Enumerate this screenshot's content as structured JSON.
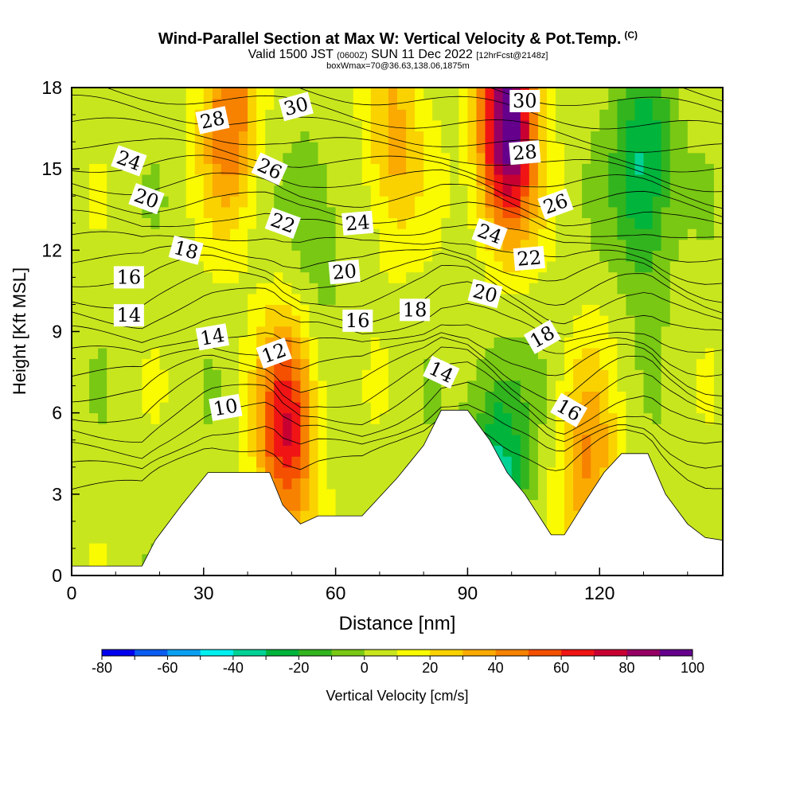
{
  "title": {
    "line1": "Wind-Parallel Section at Max W: Vertical Velocity & Pot.Temp.",
    "copyright": "(C)",
    "line2_valid": "Valid 1500 JST",
    "line2_zulu": "(0600Z)",
    "line2_date": "SUN 11 Dec 2022",
    "line2_fcst": "[12hrFcst@2148z]",
    "line3": "boxWmax=70@36.63,138.06,1875m"
  },
  "colors": {
    "palette": [
      "#0000ee",
      "#0a5cf2",
      "#0aa0f2",
      "#00f0f0",
      "#00d296",
      "#00b43c",
      "#32b41e",
      "#78c814",
      "#c8e61e",
      "#fafa00",
      "#fad200",
      "#faaa00",
      "#f78200",
      "#f55000",
      "#f01414",
      "#c80032",
      "#960064",
      "#64008c"
    ]
  },
  "chart_data": {
    "type": "heatmap",
    "description_panel": "vertical cross-section",
    "xlabel": "Distance [nm]",
    "ylabel": "Height [Kft MSL]",
    "xlim": [
      0,
      148
    ],
    "ylim": [
      0,
      18
    ],
    "xticks": [
      0,
      30,
      60,
      90,
      120
    ],
    "yticks": [
      0,
      3,
      6,
      9,
      12,
      15,
      18
    ],
    "colorbar": {
      "label": "Vertical Velocity [cm/s]",
      "range": [
        -80,
        100
      ],
      "step": 10,
      "ticks": [
        -80,
        -60,
        -40,
        -20,
        0,
        20,
        40,
        60,
        80,
        100
      ]
    },
    "terrain_profile": [
      [
        0,
        0.35
      ],
      [
        16,
        0.35
      ],
      [
        19,
        1.3
      ],
      [
        25,
        2.6
      ],
      [
        31,
        3.8
      ],
      [
        45,
        3.8
      ],
      [
        48,
        2.6
      ],
      [
        52,
        1.9
      ],
      [
        56,
        2.2
      ],
      [
        66,
        2.2
      ],
      [
        74,
        3.6
      ],
      [
        80,
        4.8
      ],
      [
        84,
        6.1
      ],
      [
        90,
        6.1
      ],
      [
        95,
        5.0
      ],
      [
        99,
        3.8
      ],
      [
        103,
        3.0
      ],
      [
        107,
        2.0
      ],
      [
        109,
        1.5
      ],
      [
        112,
        1.5
      ],
      [
        117,
        2.8
      ],
      [
        121,
        3.8
      ],
      [
        125,
        4.5
      ],
      [
        131,
        4.5
      ],
      [
        135,
        3.0
      ],
      [
        140,
        1.9
      ],
      [
        144,
        1.4
      ],
      [
        148,
        1.3
      ]
    ],
    "w_features": [
      {
        "x": 36,
        "y": 17.0,
        "value": 45
      },
      {
        "x": 73,
        "y": 16.0,
        "value": 30
      },
      {
        "x": 99,
        "y": 16.5,
        "value": 95
      },
      {
        "x": 49,
        "y": 5.5,
        "value": 65
      },
      {
        "x": 117,
        "y": 4.0,
        "value": 35
      },
      {
        "x": 130,
        "y": 15.0,
        "value": -40
      },
      {
        "x": 97,
        "y": 4.0,
        "value": -40
      },
      {
        "x": 55,
        "y": 13.0,
        "value": -15
      }
    ],
    "contour_labels": [
      {
        "text": "30",
        "x": 51,
        "y": 17.3,
        "angle": -15
      },
      {
        "text": "28",
        "x": 32,
        "y": 16.8,
        "angle": -12
      },
      {
        "text": "30",
        "x": 103,
        "y": 17.5,
        "angle": 0
      },
      {
        "text": "28",
        "x": 103,
        "y": 15.6,
        "angle": -5
      },
      {
        "text": "24",
        "x": 13,
        "y": 15.3,
        "angle": 20
      },
      {
        "text": "26",
        "x": 45,
        "y": 15.0,
        "angle": 25
      },
      {
        "text": "26",
        "x": 110,
        "y": 13.7,
        "angle": -20
      },
      {
        "text": "20",
        "x": 17,
        "y": 13.9,
        "angle": 20
      },
      {
        "text": "22",
        "x": 48,
        "y": 13.0,
        "angle": 20
      },
      {
        "text": "24",
        "x": 65,
        "y": 13.0,
        "angle": -5
      },
      {
        "text": "24",
        "x": 95,
        "y": 12.6,
        "angle": 20
      },
      {
        "text": "18",
        "x": 26,
        "y": 12.0,
        "angle": 15
      },
      {
        "text": "22",
        "x": 104,
        "y": 11.7,
        "angle": -5
      },
      {
        "text": "16",
        "x": 13,
        "y": 11.0,
        "angle": 0
      },
      {
        "text": "20",
        "x": 62,
        "y": 11.2,
        "angle": -5
      },
      {
        "text": "20",
        "x": 94,
        "y": 10.4,
        "angle": 15
      },
      {
        "text": "14",
        "x": 13,
        "y": 9.6,
        "angle": 0
      },
      {
        "text": "18",
        "x": 78,
        "y": 9.8,
        "angle": 0
      },
      {
        "text": "16",
        "x": 65,
        "y": 9.4,
        "angle": 0
      },
      {
        "text": "14",
        "x": 32,
        "y": 8.8,
        "angle": -10
      },
      {
        "text": "18",
        "x": 107,
        "y": 8.8,
        "angle": -30
      },
      {
        "text": "12",
        "x": 46,
        "y": 8.2,
        "angle": -20
      },
      {
        "text": "14",
        "x": 84,
        "y": 7.5,
        "angle": 25
      },
      {
        "text": "10",
        "x": 35,
        "y": 6.2,
        "angle": -10
      },
      {
        "text": "16",
        "x": 113,
        "y": 6.1,
        "angle": 30
      }
    ]
  }
}
